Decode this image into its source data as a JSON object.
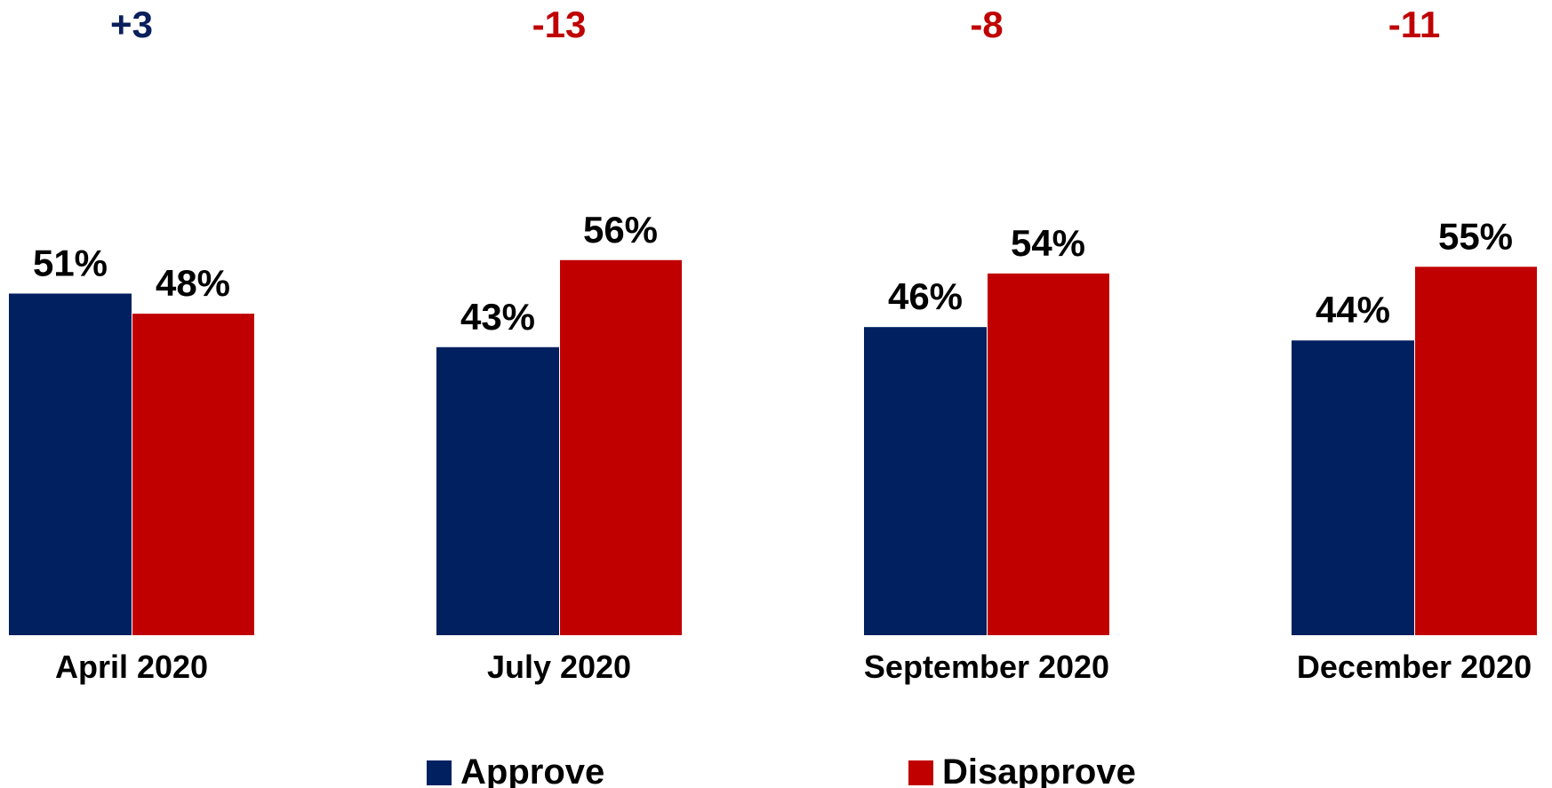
{
  "chart_data": {
    "type": "bar",
    "categories": [
      "April 2020",
      "July 2020",
      "September 2020",
      "December 2020"
    ],
    "series": [
      {
        "name": "Approve",
        "values": [
          51,
          43,
          46,
          44
        ],
        "labels": [
          "51%",
          "43%",
          "46%",
          "44%"
        ]
      },
      {
        "name": "Disapprove",
        "values": [
          48,
          56,
          54,
          55
        ],
        "labels": [
          "48%",
          "56%",
          "54%",
          "55%"
        ]
      }
    ],
    "net": [
      {
        "label": "+3",
        "color": "#0a1f5c"
      },
      {
        "label": "-13",
        "color": "#c00000"
      },
      {
        "label": "-8",
        "color": "#c00000"
      },
      {
        "label": "-11",
        "color": "#c00000"
      }
    ],
    "colors": {
      "approve": "#002060",
      "disapprove": "#c00000"
    },
    "legend_position": "bottom",
    "grid": false,
    "ylim": [
      0,
      56
    ]
  }
}
